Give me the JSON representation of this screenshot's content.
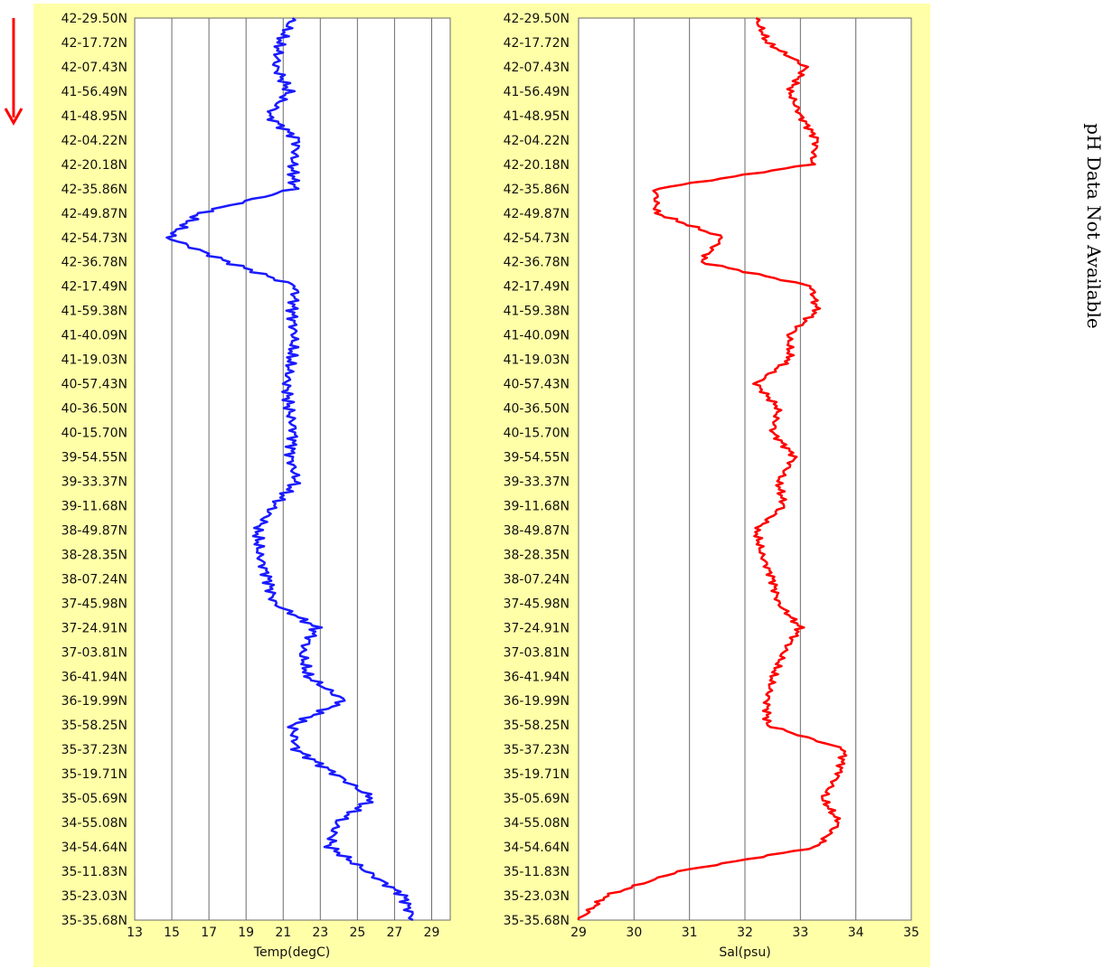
{
  "notes": {
    "ph": "pH Data Not Available"
  },
  "direction_arrow_color": "#ff0000",
  "chart_data": [
    {
      "type": "line",
      "orientation": "vertical-profile",
      "xlabel": "Temp(degC)",
      "xlim": [
        13,
        30
      ],
      "xticks": [
        13,
        15,
        17,
        19,
        21,
        23,
        25,
        27,
        29
      ],
      "grid": true,
      "series_color": "#1a1aff",
      "background": "#ffffa8",
      "y_categories": [
        "42-29.50N",
        "42-17.72N",
        "42-07.43N",
        "41-56.49N",
        "41-48.95N",
        "42-04.22N",
        "42-20.18N",
        "42-35.86N",
        "42-49.87N",
        "42-54.73N",
        "42-36.78N",
        "42-17.49N",
        "41-59.38N",
        "41-40.09N",
        "41-19.03N",
        "40-57.43N",
        "40-36.50N",
        "40-15.70N",
        "39-54.55N",
        "39-33.37N",
        "39-11.68N",
        "38-49.87N",
        "38-28.35N",
        "38-07.24N",
        "37-45.98N",
        "37-24.91N",
        "37-03.81N",
        "36-41.94N",
        "36-19.99N",
        "35-58.25N",
        "35-37.23N",
        "35-19.71N",
        "35-05.69N",
        "34-55.08N",
        "34-54.64N",
        "35-11.83N",
        "35-23.03N",
        "35-35.68N"
      ],
      "values": [
        21.5,
        20.8,
        20.6,
        21.3,
        20.2,
        21.8,
        21.5,
        21.6,
        16.5,
        14.8,
        18.0,
        21.7,
        21.5,
        21.6,
        21.4,
        21.2,
        21.3,
        21.6,
        21.4,
        21.7,
        20.5,
        19.6,
        19.7,
        20.2,
        20.5,
        22.8,
        22.0,
        22.3,
        24.3,
        21.5,
        21.7,
        23.8,
        25.8,
        23.9,
        23.5,
        25.5,
        27.5,
        28.0
      ]
    },
    {
      "type": "line",
      "orientation": "vertical-profile",
      "xlabel": "Sal(psu)",
      "xlim": [
        29,
        35
      ],
      "xticks": [
        29,
        30,
        31,
        32,
        33,
        34,
        35
      ],
      "grid": true,
      "series_color": "#ff0000",
      "background": "#ffffa8",
      "y_categories": [
        "42-29.50N",
        "42-17.72N",
        "42-07.43N",
        "41-56.49N",
        "41-48.95N",
        "42-04.22N",
        "42-20.18N",
        "42-35.86N",
        "42-49.87N",
        "42-54.73N",
        "42-36.78N",
        "42-17.49N",
        "41-59.38N",
        "41-40.09N",
        "41-19.03N",
        "40-57.43N",
        "40-36.50N",
        "40-15.70N",
        "39-54.55N",
        "39-33.37N",
        "39-11.68N",
        "38-49.87N",
        "38-28.35N",
        "38-07.24N",
        "37-45.98N",
        "37-24.91N",
        "37-03.81N",
        "36-41.94N",
        "36-19.99N",
        "35-58.25N",
        "35-37.23N",
        "35-19.71N",
        "35-05.69N",
        "34-55.08N",
        "34-54.64N",
        "35-11.83N",
        "35-23.03N",
        "35-35.68N"
      ],
      "values": [
        32.2,
        32.4,
        33.1,
        32.8,
        33.0,
        33.3,
        33.2,
        30.4,
        30.4,
        31.6,
        31.2,
        33.2,
        33.3,
        32.8,
        32.8,
        32.2,
        32.6,
        32.5,
        32.9,
        32.6,
        32.7,
        32.2,
        32.3,
        32.5,
        32.6,
        33.0,
        32.7,
        32.5,
        32.4,
        32.4,
        33.8,
        33.7,
        33.4,
        33.7,
        33.3,
        30.8,
        29.5,
        29.0
      ]
    }
  ]
}
